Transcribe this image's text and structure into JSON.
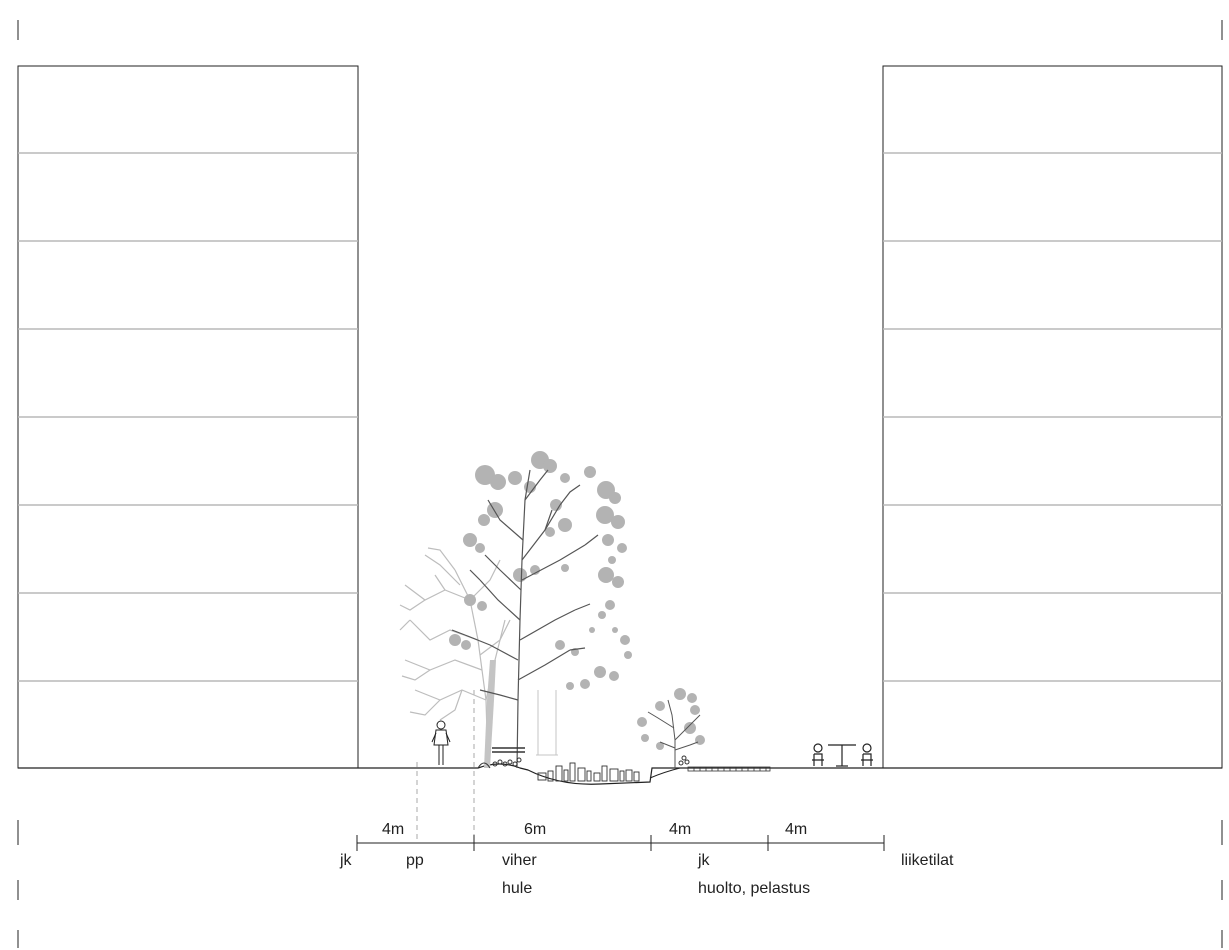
{
  "section": {
    "widths": [
      {
        "value": "4m"
      },
      {
        "value": "6m"
      },
      {
        "value": "4m"
      },
      {
        "value": "4m"
      }
    ],
    "zones": {
      "jk_left": "jk",
      "pp": "pp",
      "viher": "viher",
      "hule": "hule",
      "jk_right": "jk",
      "huolto": "huolto, pelastus",
      "liiketilat": "liiketilat"
    }
  },
  "colors": {
    "line": "#222222",
    "floor_line": "#b8b8b8",
    "foliage": "#b0b0b0",
    "trunk_dark": "#555555"
  }
}
